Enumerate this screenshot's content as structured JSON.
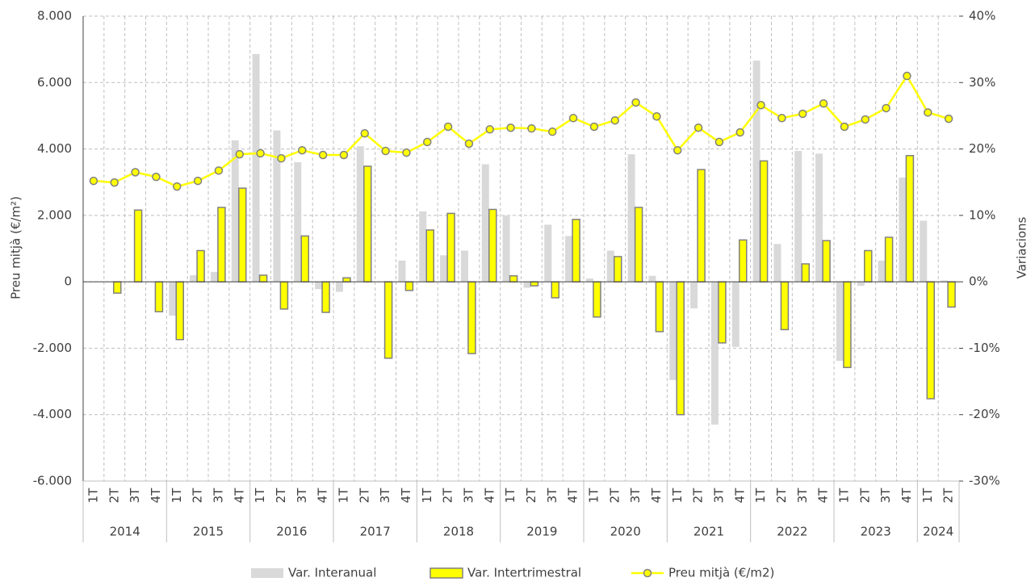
{
  "chart_data": {
    "type": "bar",
    "categories": [
      "1T",
      "2T",
      "3T",
      "4T",
      "1T",
      "2T",
      "3T",
      "4T",
      "1T",
      "2T",
      "3T",
      "4T",
      "1T",
      "2T",
      "3T",
      "4T",
      "1T",
      "2T",
      "3T",
      "4T",
      "1T",
      "2T",
      "3T",
      "4T",
      "1T",
      "2T",
      "3T",
      "4T",
      "1T",
      "2T",
      "3T",
      "4T",
      "1T",
      "2T",
      "3T",
      "4T",
      "1T",
      "2T",
      "3T",
      "4T",
      "1T",
      "2T"
    ],
    "groups": [
      "2014",
      "2015",
      "2016",
      "2017",
      "2018",
      "2019",
      "2020",
      "2021",
      "2022",
      "2023",
      "2024"
    ],
    "ylabel": "Preu mitjà (€/m²)",
    "y2label": "Variacions",
    "ylim": [
      -6000,
      8000
    ],
    "yticks": [
      {
        "value": -6000,
        "label": "-6.000"
      },
      {
        "value": -4000,
        "label": "-4.000"
      },
      {
        "value": -2000,
        "label": "-2.000"
      },
      0,
      {
        "value": 2000,
        "label": "2.000"
      },
      {
        "value": 4000,
        "label": "4.000"
      },
      {
        "value": 6000,
        "label": "6.000"
      },
      {
        "value": 8000,
        "label": "8.000"
      }
    ],
    "y2lim": [
      -30,
      40
    ],
    "y2ticks": [
      {
        "value": -30,
        "label": "-30%"
      },
      {
        "value": -20,
        "label": "-20%"
      },
      {
        "value": -10,
        "label": "-10%"
      },
      {
        "value": 0,
        "label": "0%"
      },
      {
        "value": 10,
        "label": "10%"
      },
      {
        "value": 20,
        "label": "20%"
      },
      {
        "value": 30,
        "label": "30%"
      },
      {
        "value": 40,
        "label": "40%"
      }
    ],
    "grid": true,
    "legend": "bottom",
    "series": [
      {
        "name": "Var. Interanual",
        "type": "bar",
        "axis": "y2",
        "color": "#d9d9d9",
        "values": [
          null,
          null,
          null,
          null,
          -5.1,
          1.0,
          1.5,
          21.3,
          34.3,
          22.8,
          18.0,
          -1.1,
          -1.5,
          20.4,
          0,
          3.2,
          10.6,
          4.0,
          4.7,
          17.7,
          10.0,
          -0.9,
          8.6,
          6.9,
          0.5,
          4.7,
          19.2,
          0.9,
          -14.8,
          -4.0,
          -21.5,
          -9.8,
          33.3,
          5.7,
          19.7,
          19.3,
          -11.9,
          -0.6,
          3.2,
          15.7,
          9.2,
          0.2
        ]
      },
      {
        "name": "Var. Intertrimestral",
        "type": "bar",
        "axis": "y2",
        "color": "#ffff00",
        "edge": "#808080",
        "values": [
          null,
          -1.7,
          10.8,
          -4.5,
          -8.7,
          4.7,
          11.2,
          14.1,
          1.0,
          -4.1,
          6.9,
          -4.6,
          0.6,
          17.4,
          -11.5,
          -1.3,
          7.8,
          10.3,
          -10.8,
          10.9,
          0.9,
          -0.6,
          -2.4,
          9.4,
          -5.3,
          3.8,
          11.2,
          -7.5,
          -20.0,
          16.9,
          -9.2,
          6.3,
          18.2,
          -7.2,
          2.7,
          6.2,
          -12.9,
          4.7,
          6.7,
          19.0,
          -17.6,
          -3.8
        ]
      },
      {
        "name": "Preu mitjà (€/m2)",
        "type": "line",
        "axis": "y",
        "color": "#ffff00",
        "edge": "#808080",
        "values": [
          3040,
          2990,
          3300,
          3160,
          2870,
          3040,
          3350,
          3840,
          3870,
          3720,
          3960,
          3820,
          3820,
          4470,
          3940,
          3890,
          4210,
          4670,
          4160,
          4590,
          4640,
          4620,
          4520,
          4930,
          4670,
          4860,
          5400,
          4980,
          3960,
          4640,
          4210,
          4500,
          5320,
          4930,
          5060,
          5370,
          4670,
          4890,
          5230,
          6200,
          5100,
          4910
        ]
      }
    ]
  }
}
